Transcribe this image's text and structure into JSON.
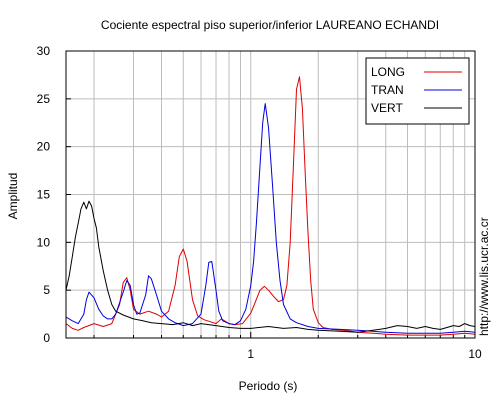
{
  "chart_data": {
    "type": "line",
    "title": "Cociente espectral piso superior/inferior LAUREANO ECHANDI",
    "xlabel": "Periodo (s)",
    "ylabel": "Amplitud",
    "xscale": "log",
    "xlim": [
      0.15,
      10
    ],
    "ylim": [
      0,
      30
    ],
    "yticks": [
      0,
      5,
      10,
      15,
      20,
      25,
      30
    ],
    "xtick_labels": [
      {
        "value": 1,
        "label": "1"
      },
      {
        "value": 10,
        "label": "10"
      }
    ],
    "grid": true,
    "legend_position": "top-right",
    "series": [
      {
        "name": "LONG",
        "color": "#e00000",
        "points": [
          [
            0.15,
            1.5
          ],
          [
            0.16,
            1.0
          ],
          [
            0.17,
            0.8
          ],
          [
            0.18,
            1.1
          ],
          [
            0.2,
            1.5
          ],
          [
            0.22,
            1.2
          ],
          [
            0.24,
            1.5
          ],
          [
            0.26,
            3.5
          ],
          [
            0.27,
            5.8
          ],
          [
            0.28,
            6.3
          ],
          [
            0.29,
            5.0
          ],
          [
            0.3,
            3.0
          ],
          [
            0.32,
            2.5
          ],
          [
            0.35,
            2.8
          ],
          [
            0.38,
            2.5
          ],
          [
            0.4,
            2.2
          ],
          [
            0.43,
            2.8
          ],
          [
            0.46,
            5.5
          ],
          [
            0.48,
            8.5
          ],
          [
            0.5,
            9.3
          ],
          [
            0.52,
            8.0
          ],
          [
            0.55,
            4.0
          ],
          [
            0.58,
            2.3
          ],
          [
            0.62,
            1.9
          ],
          [
            0.66,
            1.7
          ],
          [
            0.7,
            1.5
          ],
          [
            0.74,
            2.0
          ],
          [
            0.8,
            1.5
          ],
          [
            0.85,
            1.4
          ],
          [
            0.92,
            1.5
          ],
          [
            1.0,
            2.6
          ],
          [
            1.05,
            3.8
          ],
          [
            1.1,
            5.0
          ],
          [
            1.15,
            5.4
          ],
          [
            1.2,
            5.0
          ],
          [
            1.27,
            4.3
          ],
          [
            1.33,
            3.8
          ],
          [
            1.4,
            4.0
          ],
          [
            1.45,
            5.5
          ],
          [
            1.5,
            10.0
          ],
          [
            1.55,
            18.0
          ],
          [
            1.6,
            26.0
          ],
          [
            1.65,
            27.3
          ],
          [
            1.7,
            24.0
          ],
          [
            1.75,
            17.0
          ],
          [
            1.8,
            11.0
          ],
          [
            1.85,
            6.0
          ],
          [
            1.9,
            3.0
          ],
          [
            2.0,
            1.6
          ],
          [
            2.1,
            1.1
          ],
          [
            2.3,
            0.9
          ],
          [
            2.6,
            0.8
          ],
          [
            3.0,
            0.6
          ],
          [
            3.5,
            0.5
          ],
          [
            4.0,
            0.4
          ],
          [
            5.0,
            0.3
          ],
          [
            6.0,
            0.3
          ],
          [
            7.0,
            0.3
          ],
          [
            8.0,
            0.4
          ],
          [
            9.0,
            0.5
          ],
          [
            10.0,
            0.4
          ]
        ]
      },
      {
        "name": "TRAN",
        "color": "#0000e0",
        "points": [
          [
            0.15,
            2.2
          ],
          [
            0.16,
            1.8
          ],
          [
            0.17,
            1.5
          ],
          [
            0.18,
            2.5
          ],
          [
            0.185,
            4.0
          ],
          [
            0.19,
            4.8
          ],
          [
            0.2,
            4.2
          ],
          [
            0.21,
            3.0
          ],
          [
            0.22,
            2.3
          ],
          [
            0.23,
            2.0
          ],
          [
            0.24,
            2.0
          ],
          [
            0.25,
            2.5
          ],
          [
            0.27,
            4.8
          ],
          [
            0.28,
            6.0
          ],
          [
            0.29,
            5.5
          ],
          [
            0.3,
            3.5
          ],
          [
            0.31,
            2.5
          ],
          [
            0.32,
            2.6
          ],
          [
            0.34,
            4.5
          ],
          [
            0.35,
            6.5
          ],
          [
            0.36,
            6.2
          ],
          [
            0.38,
            4.5
          ],
          [
            0.4,
            2.8
          ],
          [
            0.43,
            2.0
          ],
          [
            0.46,
            1.6
          ],
          [
            0.5,
            1.3
          ],
          [
            0.55,
            1.5
          ],
          [
            0.6,
            2.5
          ],
          [
            0.63,
            5.5
          ],
          [
            0.65,
            7.9
          ],
          [
            0.67,
            8.0
          ],
          [
            0.7,
            5.0
          ],
          [
            0.72,
            2.8
          ],
          [
            0.75,
            1.8
          ],
          [
            0.8,
            1.5
          ],
          [
            0.85,
            1.4
          ],
          [
            0.9,
            1.8
          ],
          [
            0.95,
            3.0
          ],
          [
            1.0,
            5.5
          ],
          [
            1.03,
            8.0
          ],
          [
            1.06,
            12.0
          ],
          [
            1.1,
            18.0
          ],
          [
            1.13,
            22.5
          ],
          [
            1.16,
            24.5
          ],
          [
            1.2,
            22.0
          ],
          [
            1.25,
            16.0
          ],
          [
            1.3,
            10.0
          ],
          [
            1.35,
            6.0
          ],
          [
            1.4,
            3.5
          ],
          [
            1.5,
            2.0
          ],
          [
            1.6,
            1.6
          ],
          [
            1.8,
            1.2
          ],
          [
            2.0,
            1.0
          ],
          [
            2.5,
            0.9
          ],
          [
            3.0,
            0.8
          ],
          [
            3.5,
            0.7
          ],
          [
            4.0,
            0.6
          ],
          [
            5.0,
            0.5
          ],
          [
            6.0,
            0.5
          ],
          [
            7.0,
            0.5
          ],
          [
            8.0,
            0.6
          ],
          [
            9.0,
            0.7
          ],
          [
            10.0,
            0.6
          ]
        ]
      },
      {
        "name": "VERT",
        "color": "#000000",
        "points": [
          [
            0.15,
            5.0
          ],
          [
            0.155,
            6.5
          ],
          [
            0.16,
            8.5
          ],
          [
            0.165,
            10.5
          ],
          [
            0.17,
            12.0
          ],
          [
            0.175,
            13.5
          ],
          [
            0.18,
            14.2
          ],
          [
            0.185,
            13.5
          ],
          [
            0.19,
            14.3
          ],
          [
            0.195,
            13.8
          ],
          [
            0.2,
            12.5
          ],
          [
            0.205,
            11.5
          ],
          [
            0.21,
            9.5
          ],
          [
            0.22,
            7.0
          ],
          [
            0.23,
            5.0
          ],
          [
            0.24,
            3.5
          ],
          [
            0.25,
            2.8
          ],
          [
            0.27,
            2.4
          ],
          [
            0.3,
            2.0
          ],
          [
            0.33,
            1.8
          ],
          [
            0.36,
            1.6
          ],
          [
            0.4,
            1.5
          ],
          [
            0.45,
            1.4
          ],
          [
            0.5,
            1.6
          ],
          [
            0.55,
            1.3
          ],
          [
            0.6,
            1.5
          ],
          [
            0.7,
            1.3
          ],
          [
            0.8,
            1.1
          ],
          [
            0.9,
            1.0
          ],
          [
            1.0,
            1.0
          ],
          [
            1.2,
            1.2
          ],
          [
            1.4,
            1.0
          ],
          [
            1.6,
            1.1
          ],
          [
            1.8,
            0.9
          ],
          [
            2.0,
            0.8
          ],
          [
            2.5,
            0.7
          ],
          [
            3.0,
            0.6
          ],
          [
            3.5,
            0.8
          ],
          [
            4.0,
            1.0
          ],
          [
            4.5,
            1.3
          ],
          [
            5.0,
            1.2
          ],
          [
            5.5,
            1.0
          ],
          [
            6.0,
            1.2
          ],
          [
            6.5,
            1.0
          ],
          [
            7.0,
            0.9
          ],
          [
            7.5,
            1.1
          ],
          [
            8.0,
            1.3
          ],
          [
            8.5,
            1.2
          ],
          [
            9.0,
            1.5
          ],
          [
            9.5,
            1.3
          ],
          [
            10.0,
            1.2
          ]
        ]
      }
    ]
  },
  "side_text": "http://www.lis.ucr.ac.cr"
}
